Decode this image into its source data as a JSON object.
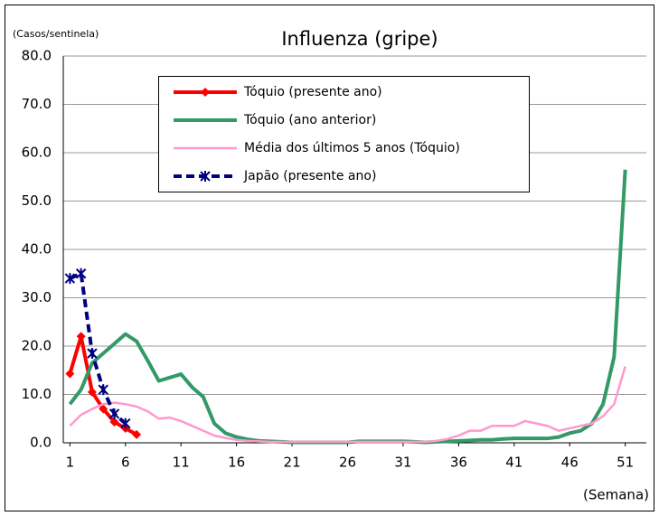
{
  "chart_data": {
    "type": "line",
    "title": "Influenza (gripe)",
    "y_label": "(Casos/sentinela)",
    "x_label": "(Semana)",
    "xlim": [
      0.4,
      52.9
    ],
    "xticks": [
      1,
      6,
      11,
      16,
      21,
      26,
      31,
      36,
      41,
      46,
      51
    ],
    "ylim": [
      0,
      80
    ],
    "yticks": [
      {
        "value": 0,
        "label": "0.0"
      },
      {
        "value": 10,
        "label": "10.0"
      },
      {
        "value": 20,
        "label": "20.0"
      },
      {
        "value": 30,
        "label": "30.0"
      },
      {
        "value": 40,
        "label": "40.0"
      },
      {
        "value": 50,
        "label": "50.0"
      },
      {
        "value": 60,
        "label": "60.0"
      },
      {
        "value": 70,
        "label": "70.0"
      },
      {
        "value": 80,
        "label": "80.0"
      }
    ],
    "grid": true,
    "series": [
      {
        "name": "Tóquio (presente ano)",
        "color": "#ff0000",
        "marker": "diamond",
        "x": [
          1,
          2,
          3,
          4,
          5,
          6,
          7
        ],
        "values": [
          14.3,
          22,
          10.5,
          7,
          4.3,
          3,
          1.7
        ]
      },
      {
        "name": "Tóquio (ano anterior)",
        "color": "#339966",
        "x": [
          1,
          2,
          3,
          4,
          5,
          6,
          7,
          8,
          9,
          10,
          11,
          12,
          13,
          14,
          15,
          16,
          17,
          18,
          19,
          20,
          21,
          22,
          23,
          24,
          25,
          26,
          27,
          28,
          29,
          30,
          31,
          32,
          33,
          34,
          35,
          36,
          37,
          38,
          39,
          40,
          41,
          42,
          43,
          44,
          45,
          46,
          47,
          48,
          49,
          50,
          51
        ],
        "values": [
          8,
          11,
          16.5,
          18.5,
          20.5,
          22.5,
          21,
          17,
          12.8,
          13.5,
          14.2,
          11.5,
          9.5,
          4,
          2,
          1.2,
          0.7,
          0.4,
          0.3,
          0.2,
          0.1,
          0.1,
          0.1,
          0.1,
          0.1,
          0.1,
          0.3,
          0.3,
          0.3,
          0.3,
          0.3,
          0.2,
          0.1,
          0.2,
          0.3,
          0.4,
          0.5,
          0.6,
          0.6,
          0.8,
          0.9,
          0.9,
          0.9,
          0.9,
          1.2,
          2,
          2.5,
          4,
          8,
          17.8,
          56.5
        ]
      },
      {
        "name": "Média dos últimos 5 anos (Tóquio)",
        "color": "#ff99cc",
        "x": [
          1,
          2,
          3,
          4,
          5,
          6,
          7,
          8,
          9,
          10,
          11,
          12,
          13,
          14,
          15,
          16,
          17,
          18,
          19,
          20,
          21,
          22,
          23,
          24,
          25,
          26,
          27,
          28,
          29,
          30,
          31,
          32,
          33,
          34,
          35,
          36,
          37,
          38,
          39,
          40,
          41,
          42,
          43,
          44,
          45,
          46,
          47,
          48,
          49,
          50,
          51
        ],
        "values": [
          3.5,
          5.8,
          7,
          8,
          8.3,
          8,
          7.5,
          6.5,
          5,
          5.2,
          4.5,
          3.5,
          2.5,
          1.5,
          1,
          0.6,
          0.4,
          0.3,
          0.2,
          0.2,
          0.2,
          0.2,
          0.2,
          0.2,
          0.2,
          0.2,
          0.2,
          0.2,
          0.2,
          0.2,
          0.2,
          0.2,
          0.2,
          0.4,
          0.8,
          1.5,
          2.5,
          2.5,
          3.5,
          3.5,
          3.5,
          4.5,
          4,
          3.5,
          2.5,
          3,
          3.5,
          4,
          5.5,
          8,
          15.8
        ]
      },
      {
        "name": "Japão (presente ano)",
        "color": "#000080",
        "marker": "asterisk",
        "dashed": true,
        "x": [
          1,
          2,
          3,
          4,
          5,
          6
        ],
        "values": [
          34,
          35,
          18.5,
          11,
          6,
          4
        ]
      }
    ]
  }
}
